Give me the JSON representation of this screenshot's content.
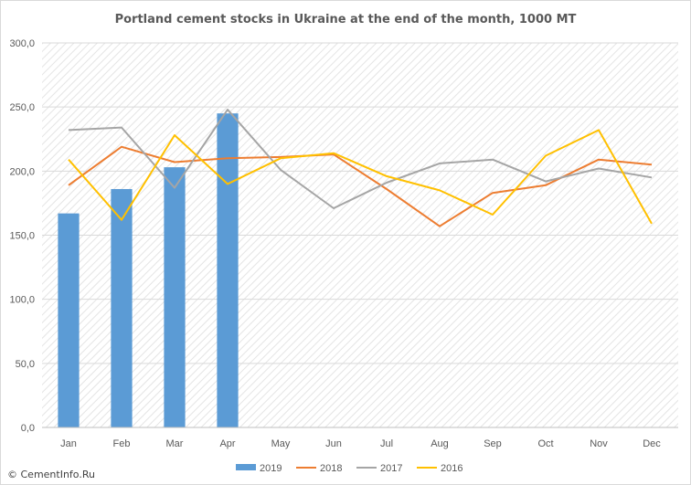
{
  "chart_data": {
    "type": "bar+line",
    "title": "Portland cement stocks in Ukraine at the end of the month, 1000 MT",
    "categories": [
      "Jan",
      "Feb",
      "Mar",
      "Apr",
      "May",
      "Jun",
      "Jul",
      "Aug",
      "Sep",
      "Oct",
      "Nov",
      "Dec"
    ],
    "ylim": [
      0,
      300
    ],
    "yticks": [
      "0,0",
      "50,0",
      "100,0",
      "150,0",
      "200,0",
      "250,0",
      "300,0"
    ],
    "grid": "horizontal",
    "legend_position": "bottom",
    "bar_series": {
      "name": "2019",
      "color": "#5b9bd5",
      "values": [
        167,
        186,
        203,
        245
      ]
    },
    "line_series": [
      {
        "name": "2018",
        "color": "#ed7d31",
        "values": [
          189,
          219,
          207,
          210,
          211,
          213,
          186,
          157,
          183,
          189,
          209,
          205
        ]
      },
      {
        "name": "2017",
        "color": "#a5a5a5",
        "values": [
          232,
          234,
          187,
          248,
          201,
          171,
          191,
          206,
          209,
          192,
          202,
          195
        ]
      },
      {
        "name": "2016",
        "color": "#ffc000",
        "values": [
          209,
          162,
          228,
          190,
          210,
          214,
          196,
          185,
          166,
          212,
          232,
          159
        ]
      }
    ]
  },
  "credit": "© CementInfo.Ru"
}
